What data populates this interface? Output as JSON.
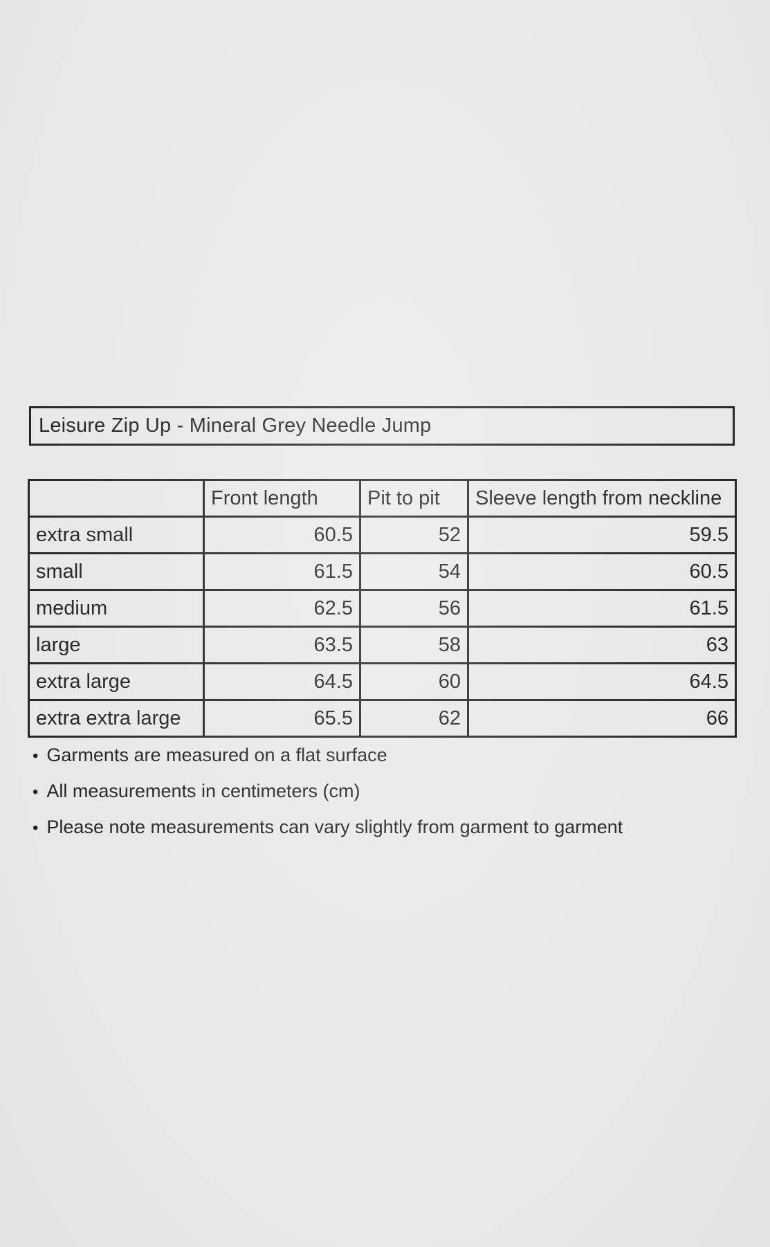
{
  "page": {
    "background_color": "#e9e9e9",
    "border_color": "#141414",
    "text_color": "#111111"
  },
  "title": "Leisure Zip Up - Mineral Grey Needle Jump",
  "size_chart": {
    "columns": [
      "",
      "Front length",
      "Pit to pit",
      "Sleeve length from neckline"
    ],
    "rows": [
      {
        "size": "extra small",
        "front_length": "60.5",
        "pit_to_pit": "52",
        "sleeve_length_from_neckline": "59.5"
      },
      {
        "size": "small",
        "front_length": "61.5",
        "pit_to_pit": "54",
        "sleeve_length_from_neckline": "60.5"
      },
      {
        "size": "medium",
        "front_length": "62.5",
        "pit_to_pit": "56",
        "sleeve_length_from_neckline": "61.5"
      },
      {
        "size": "large",
        "front_length": "63.5",
        "pit_to_pit": "58",
        "sleeve_length_from_neckline": "63"
      },
      {
        "size": "extra large",
        "front_length": "64.5",
        "pit_to_pit": "60",
        "sleeve_length_from_neckline": "64.5"
      },
      {
        "size": "extra extra large",
        "front_length": "65.5",
        "pit_to_pit": "62",
        "sleeve_length_from_neckline": "66"
      }
    ]
  },
  "notes": {
    "bullet": "•",
    "items": [
      "Garments are measured on a flat surface",
      "All measurements in centimeters (cm)",
      "Please note measurements can vary slightly from garment to garment"
    ]
  }
}
